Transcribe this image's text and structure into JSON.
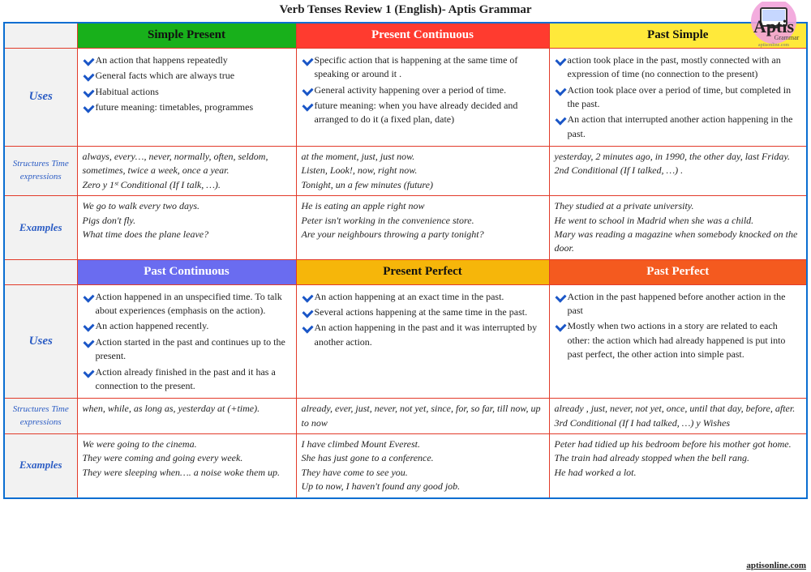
{
  "title": "Verb Tenses Review 1 (English)- Aptis Grammar",
  "footer": "aptisonline.com",
  "logo": {
    "brand": "Aptis",
    "sub": "Grammar",
    "sub2": "aptisonline.com"
  },
  "rowLabels": {
    "uses": "Uses",
    "structures": "Structures Time expressions",
    "examples": "Examples"
  },
  "top": {
    "headers": [
      {
        "label": "Simple Present",
        "bg": "#18b01b",
        "fg": "#111"
      },
      {
        "label": "Present Continuous",
        "bg": "#ff3b2f",
        "fg": "#fff"
      },
      {
        "label": "Past Simple",
        "bg": "#ffe93a",
        "fg": "#111"
      }
    ],
    "uses": [
      [
        "An action that happens repeatedly",
        "General facts which are always true",
        "Habitual actions",
        "future meaning: timetables, programmes"
      ],
      [
        "Specific action that is happening at the same time of speaking or around it .",
        "General activity happening over a period of time.",
        "future meaning: when you have already decided and arranged to do it (a fixed plan, date)"
      ],
      [
        "action took place in the past, mostly connected with an expression of time (no connection to the present)",
        "Action took place over a period of time, but completed in the past.",
        "An action that interrupted another action happening in the past."
      ]
    ],
    "structures": [
      "always, every…, never, normally, often, seldom, sometimes, twice a week, once a year.\nZero y 1ˢᵗ Conditional (If I talk, …).",
      "at the moment, just, just now.\nListen, Look!, now, right now.\nTonight, un a few minutes (future)",
      "yesterday, 2 minutes ago, in 1990, the other day, last Friday.\n2nd Conditional (If I talked, …) ."
    ],
    "examples": [
      "We go to walk every two days.\nPigs don't fly.\nWhat time does the plane leave?",
      "He is eating an apple right now\nPeter isn't working in the convenience store.\nAre your neighbours throwing a party tonight?",
      "They studied at a private university.\nHe went to school in Madrid when she was a child.\nMary was reading a magazine when somebody knocked on the door."
    ]
  },
  "bottom": {
    "headers": [
      {
        "label": "Past Continuous",
        "bg": "#6a6cf0",
        "fg": "#fff"
      },
      {
        "label": "Present Perfect",
        "bg": "#f6b60a",
        "fg": "#111"
      },
      {
        "label": "Past Perfect",
        "bg": "#f45a1f",
        "fg": "#fff"
      }
    ],
    "uses": [
      [
        "Action happened in an unspecified time. To talk about experiences (emphasis on the action).",
        "An action happened recently.",
        "Action started in the past and continues up to the present.",
        "Action already finished in the past and it has a connection to the present."
      ],
      [
        "An action happening at an exact time in the past.",
        "Several actions happening at the same time in the past.",
        "An action happening in the past and it was interrupted by another action."
      ],
      [
        "Action in the past happened before another action in the past",
        "Mostly when two actions in a story are related to each other: the action which had already happened is put into past perfect, the other action into simple past."
      ]
    ],
    "structures": [
      "when, while, as long as, yesterday at (+time).",
      "already, ever, just, never, not yet, since, for, so far, till now, up to now",
      "already , just, never, not yet, once, until that day, before, after.\n3rd Conditional (If I had talked, …) y Wishes"
    ],
    "examples": [
      "We were going to the cinema.\nThey were coming and going every week.\nThey were sleeping when…. a noise woke them up.",
      "I have climbed Mount Everest.\nShe has just gone to a conference.\nThey have come to see you.\nUp to now, I haven't found any good job.",
      " Peter had tidied up his bedroom before his mother got home.\nThe train had already stopped when the bell rang.\nHe had worked a lot."
    ]
  }
}
